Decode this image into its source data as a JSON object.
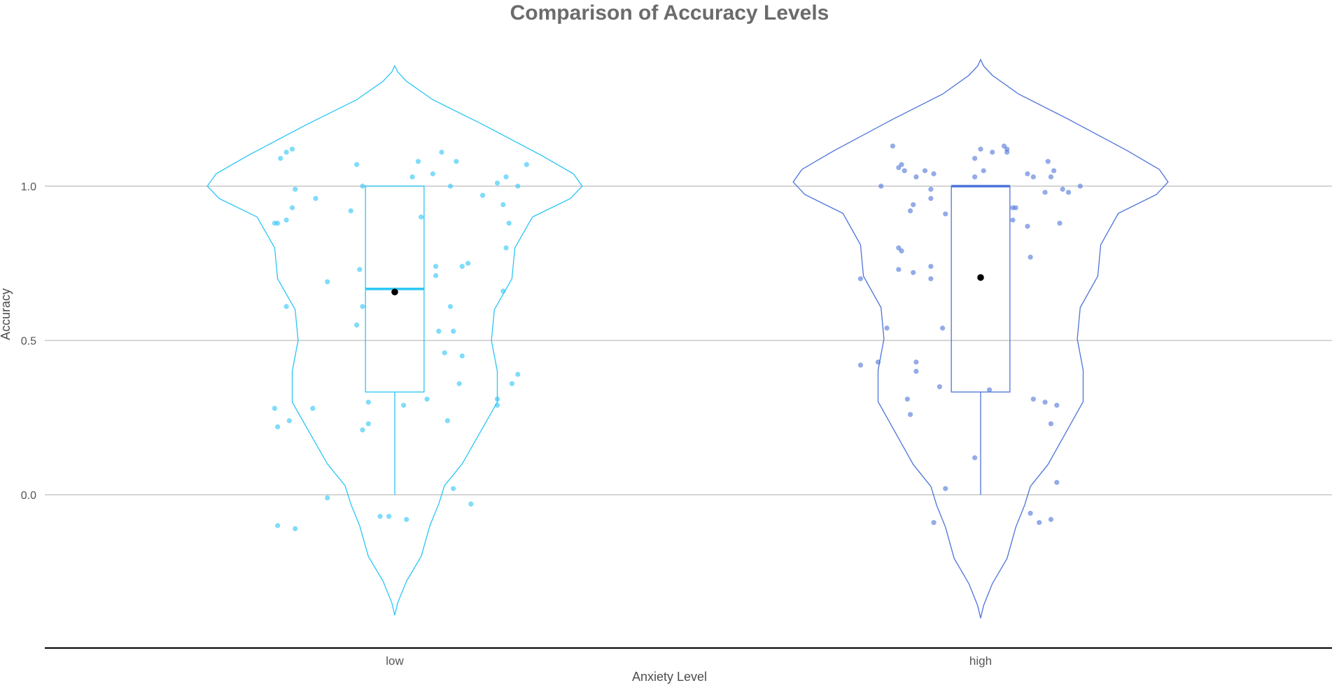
{
  "chart_data": {
    "type": "violin",
    "title": "Comparison of Accuracy Levels",
    "xlabel": "Anxiety Level",
    "ylabel": "Accuracy",
    "categories": [
      "low",
      "high"
    ],
    "ylim": [
      -0.5,
      1.5
    ],
    "yticks": [
      0.0,
      0.5,
      1.0
    ],
    "ytick_labels": [
      "0.0",
      "0.5",
      "1.0"
    ],
    "grid": "horizontal",
    "legend": "none",
    "colors": {
      "low": "#29c5f6",
      "high": "#4d73d9",
      "mean_point": "#000000",
      "grid": "#c8c8c8"
    },
    "groups": [
      {
        "name": "low",
        "violin_range": [
          -0.39,
          1.39
        ],
        "box": {
          "q1": 0.333,
          "median": 0.667,
          "q3": 1.0,
          "whisker_low": 0.0,
          "whisker_high": 1.0
        },
        "mean": 0.657,
        "points": [
          [
            -0.39,
            1.09
          ],
          [
            -0.37,
            1.11
          ],
          [
            -0.35,
            1.12
          ],
          [
            -0.34,
            0.99
          ],
          [
            -0.35,
            0.93
          ],
          [
            -0.37,
            0.89
          ],
          [
            -0.41,
            0.88
          ],
          [
            -0.4,
            0.88
          ],
          [
            -0.27,
            0.96
          ],
          [
            -0.15,
            0.92
          ],
          [
            -0.13,
            0.55
          ],
          [
            -0.12,
            0.73
          ],
          [
            -0.11,
            1.0
          ],
          [
            -0.13,
            1.07
          ],
          [
            -0.23,
            0.69
          ],
          [
            -0.37,
            0.61
          ],
          [
            -0.41,
            0.28
          ],
          [
            -0.4,
            0.22
          ],
          [
            -0.36,
            0.24
          ],
          [
            -0.28,
            0.28
          ],
          [
            -0.11,
            0.21
          ],
          [
            -0.09,
            0.23
          ],
          [
            -0.09,
            0.3
          ],
          [
            -0.23,
            -0.01
          ],
          [
            -0.4,
            -0.1
          ],
          [
            -0.34,
            -0.11
          ],
          [
            -0.05,
            -0.07
          ],
          [
            -0.02,
            -0.07
          ],
          [
            0.04,
            -0.08
          ],
          [
            0.06,
            1.03
          ],
          [
            0.08,
            1.08
          ],
          [
            0.09,
            0.9
          ],
          [
            0.13,
            1.04
          ],
          [
            0.16,
            1.11
          ],
          [
            0.21,
            1.08
          ],
          [
            0.19,
            1.0
          ],
          [
            0.14,
            0.71
          ],
          [
            0.14,
            0.74
          ],
          [
            0.23,
            0.74
          ],
          [
            0.25,
            0.75
          ],
          [
            0.19,
            0.61
          ],
          [
            0.23,
            0.45
          ],
          [
            0.2,
            0.53
          ],
          [
            0.15,
            0.53
          ],
          [
            0.22,
            0.36
          ],
          [
            0.17,
            0.46
          ],
          [
            0.11,
            0.31
          ],
          [
            0.03,
            0.29
          ],
          [
            0.18,
            0.24
          ],
          [
            0.2,
            0.02
          ],
          [
            0.26,
            -0.03
          ],
          [
            0.3,
            0.97
          ],
          [
            0.35,
            1.01
          ],
          [
            0.38,
            1.03
          ],
          [
            0.42,
            1.0
          ],
          [
            0.45,
            1.07
          ],
          [
            0.37,
            0.94
          ],
          [
            0.39,
            0.88
          ],
          [
            0.38,
            0.8
          ],
          [
            0.37,
            0.66
          ],
          [
            0.42,
            0.39
          ],
          [
            0.4,
            0.36
          ],
          [
            0.35,
            0.31
          ],
          [
            0.35,
            0.29
          ],
          [
            -0.11,
            0.61
          ]
        ]
      },
      {
        "name": "high",
        "violin_range": [
          -0.4,
          1.41
        ],
        "box": {
          "q1": 0.333,
          "median": 1.0,
          "q3": 1.0,
          "whisker_low": 0.0,
          "whisker_high": 1.0
        },
        "mean": 0.704,
        "points": [
          [
            -0.3,
            1.13
          ],
          [
            -0.27,
            1.07
          ],
          [
            -0.28,
            1.06
          ],
          [
            -0.26,
            1.05
          ],
          [
            -0.22,
            1.03
          ],
          [
            -0.23,
            0.94
          ],
          [
            -0.24,
            0.92
          ],
          [
            -0.19,
            1.05
          ],
          [
            -0.16,
            1.04
          ],
          [
            -0.17,
            0.99
          ],
          [
            -0.17,
            0.96
          ],
          [
            -0.12,
            0.91
          ],
          [
            -0.02,
            1.03
          ],
          [
            -0.02,
            1.09
          ],
          [
            0.0,
            1.12
          ],
          [
            0.01,
            1.05
          ],
          [
            0.04,
            1.11
          ],
          [
            0.08,
            1.13
          ],
          [
            0.09,
            1.11
          ],
          [
            0.09,
            1.12
          ],
          [
            0.11,
            0.93
          ],
          [
            0.12,
            0.93
          ],
          [
            0.11,
            0.89
          ],
          [
            -0.34,
            1.0
          ],
          [
            -0.28,
            0.8
          ],
          [
            -0.27,
            0.79
          ],
          [
            -0.28,
            0.73
          ],
          [
            -0.23,
            0.72
          ],
          [
            -0.17,
            0.74
          ],
          [
            -0.17,
            0.7
          ],
          [
            -0.41,
            0.7
          ],
          [
            -0.32,
            0.54
          ],
          [
            -0.35,
            0.43
          ],
          [
            -0.41,
            0.42
          ],
          [
            -0.22,
            0.43
          ],
          [
            -0.22,
            0.4
          ],
          [
            -0.25,
            0.31
          ],
          [
            -0.24,
            0.26
          ],
          [
            -0.14,
            0.35
          ],
          [
            -0.13,
            0.54
          ],
          [
            -0.12,
            0.02
          ],
          [
            -0.16,
            -0.09
          ],
          [
            -0.02,
            0.12
          ],
          [
            0.03,
            0.34
          ],
          [
            0.16,
            1.04
          ],
          [
            0.18,
            1.03
          ],
          [
            0.23,
            1.08
          ],
          [
            0.25,
            1.05
          ],
          [
            0.22,
            0.98
          ],
          [
            0.28,
            0.99
          ],
          [
            0.24,
            1.03
          ],
          [
            0.27,
            0.88
          ],
          [
            0.16,
            0.87
          ],
          [
            0.17,
            0.77
          ],
          [
            0.18,
            0.31
          ],
          [
            0.22,
            0.3
          ],
          [
            0.24,
            0.23
          ],
          [
            0.26,
            0.29
          ],
          [
            0.26,
            0.04
          ],
          [
            0.2,
            -0.09
          ],
          [
            0.24,
            -0.08
          ],
          [
            0.17,
            -0.06
          ],
          [
            0.34,
            1.0
          ],
          [
            0.3,
            0.98
          ]
        ]
      }
    ]
  }
}
